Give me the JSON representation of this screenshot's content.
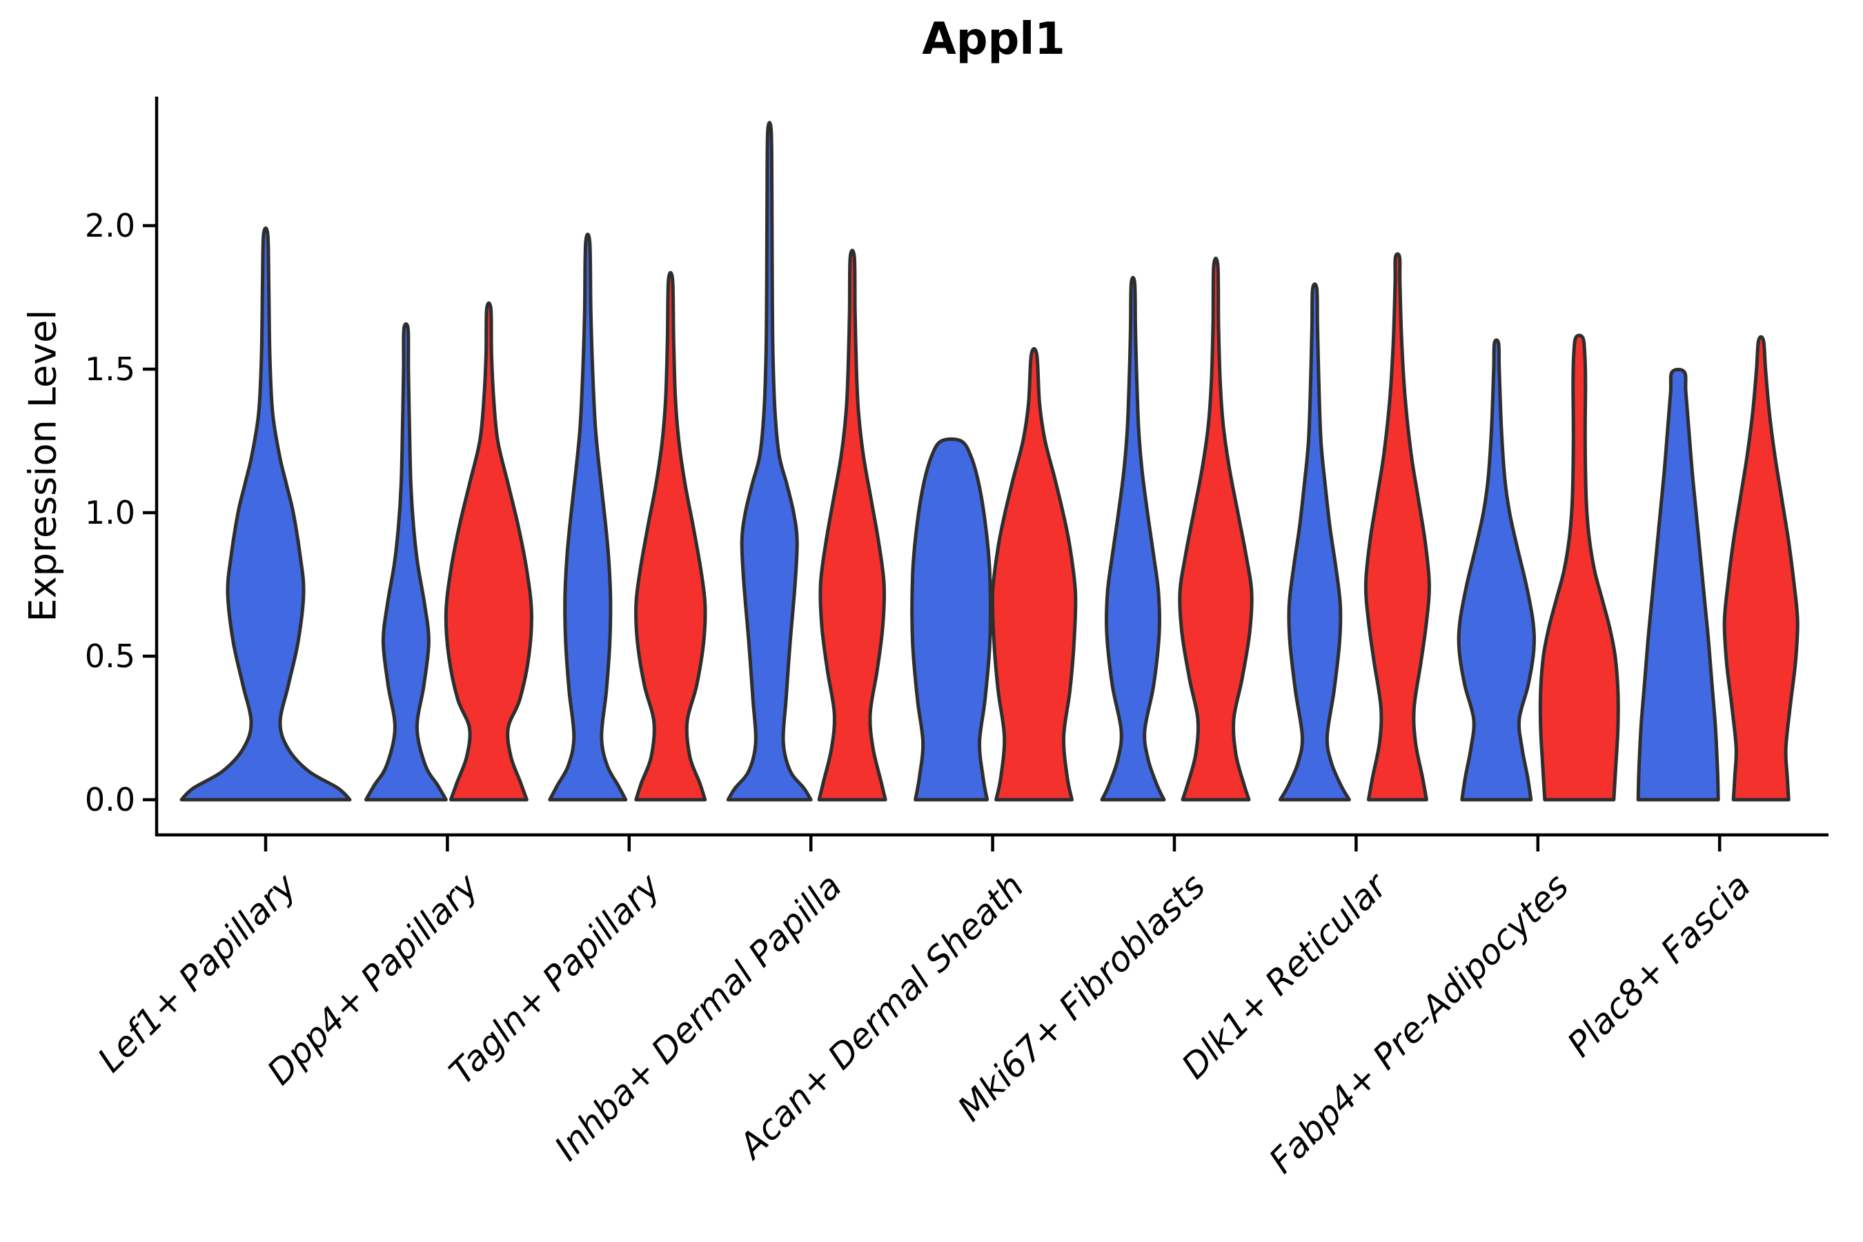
{
  "figure": {
    "title": "Appl1",
    "background": "#ffffff",
    "y_axis": {
      "label": "Expression Level",
      "tick_labels": [
        "0.0",
        "0.5",
        "1.0",
        "1.5",
        "2.0"
      ]
    },
    "colors": {
      "blue": "#4169E1",
      "red": "#F5312E",
      "violin_outline": "#2E2E2E",
      "axis": "#000000",
      "text": "#000000"
    }
  },
  "chart_data": {
    "type": "violin",
    "title": "Appl1",
    "xlabel": "",
    "ylabel": "Expression Level",
    "ylim": [
      -0.12,
      2.45
    ],
    "y_ticks": [
      0.0,
      0.5,
      1.0,
      1.5,
      2.0
    ],
    "grid": false,
    "legend": "none",
    "categories": [
      "Lef1+ Papillary",
      "Dpp4+ Papillary",
      "Tagln+ Papillary",
      "Inhba+ Dermal Papilla",
      "Acan+ Dermal Sheath",
      "Mki67+ Fibroblasts",
      "Dlk1+ Reticular",
      "Fabp4+ Pre-Adipocytes",
      "Plac8+ Fascia"
    ],
    "series": [
      {
        "name": "blue",
        "color": "#4169E1"
      },
      {
        "name": "red",
        "color": "#F5312E"
      }
    ],
    "profile_units": "each profile point is [expression_value, half_width_px]",
    "violins": [
      {
        "category_index": 0,
        "category": "Lef1+ Papillary",
        "group": "blue",
        "single": true,
        "max_expression": 1.97,
        "density_profile": [
          [
            0,
            122
          ],
          [
            0.04,
            105
          ],
          [
            0.1,
            62
          ],
          [
            0.18,
            32
          ],
          [
            0.27,
            21
          ],
          [
            0.4,
            33
          ],
          [
            0.55,
            47
          ],
          [
            0.72,
            55
          ],
          [
            0.85,
            50
          ],
          [
            1.0,
            40
          ],
          [
            1.1,
            30
          ],
          [
            1.2,
            20
          ],
          [
            1.35,
            10
          ],
          [
            1.55,
            6
          ],
          [
            1.8,
            4.5
          ],
          [
            1.97,
            3
          ]
        ]
      },
      {
        "category_index": 1,
        "category": "Dpp4+ Papillary",
        "group": "blue",
        "single": false,
        "max_expression": 1.64,
        "density_profile": [
          [
            0,
            58
          ],
          [
            0.05,
            46
          ],
          [
            0.12,
            28
          ],
          [
            0.25,
            16
          ],
          [
            0.4,
            26
          ],
          [
            0.55,
            33
          ],
          [
            0.68,
            27
          ],
          [
            0.82,
            17
          ],
          [
            0.95,
            11
          ],
          [
            1.1,
            7
          ],
          [
            1.3,
            5
          ],
          [
            1.5,
            3.5
          ],
          [
            1.64,
            3
          ]
        ]
      },
      {
        "category_index": 1,
        "category": "Dpp4+ Papillary",
        "group": "red",
        "single": false,
        "max_expression": 1.71,
        "density_profile": [
          [
            0,
            55
          ],
          [
            0.06,
            46
          ],
          [
            0.15,
            32
          ],
          [
            0.25,
            28
          ],
          [
            0.35,
            45
          ],
          [
            0.5,
            58
          ],
          [
            0.65,
            62
          ],
          [
            0.8,
            55
          ],
          [
            0.95,
            43
          ],
          [
            1.1,
            28
          ],
          [
            1.25,
            13
          ],
          [
            1.4,
            7
          ],
          [
            1.55,
            4
          ],
          [
            1.71,
            3
          ]
        ]
      },
      {
        "category_index": 2,
        "category": "Tagln+ Papillary",
        "group": "blue",
        "single": false,
        "max_expression": 1.94,
        "density_profile": [
          [
            0,
            55
          ],
          [
            0.05,
            44
          ],
          [
            0.12,
            28
          ],
          [
            0.22,
            20
          ],
          [
            0.38,
            27
          ],
          [
            0.55,
            32
          ],
          [
            0.7,
            33
          ],
          [
            0.85,
            30
          ],
          [
            1.0,
            24
          ],
          [
            1.15,
            17
          ],
          [
            1.3,
            11
          ],
          [
            1.5,
            7
          ],
          [
            1.7,
            4.5
          ],
          [
            1.94,
            3
          ]
        ]
      },
      {
        "category_index": 2,
        "category": "Tagln+ Papillary",
        "group": "red",
        "single": false,
        "max_expression": 1.81,
        "density_profile": [
          [
            0,
            50
          ],
          [
            0.06,
            42
          ],
          [
            0.15,
            28
          ],
          [
            0.27,
            24
          ],
          [
            0.4,
            38
          ],
          [
            0.55,
            48
          ],
          [
            0.68,
            50
          ],
          [
            0.8,
            44
          ],
          [
            0.95,
            33
          ],
          [
            1.1,
            21
          ],
          [
            1.25,
            12
          ],
          [
            1.4,
            7
          ],
          [
            1.6,
            4.5
          ],
          [
            1.81,
            3
          ]
        ]
      },
      {
        "category_index": 3,
        "category": "Inhba+ Dermal Papilla",
        "group": "blue",
        "single": false,
        "max_expression": 2.33,
        "density_profile": [
          [
            0,
            60
          ],
          [
            0.04,
            50
          ],
          [
            0.1,
            30
          ],
          [
            0.2,
            20
          ],
          [
            0.35,
            24
          ],
          [
            0.55,
            30
          ],
          [
            0.75,
            37
          ],
          [
            0.9,
            40
          ],
          [
            1.0,
            35
          ],
          [
            1.1,
            25
          ],
          [
            1.2,
            14
          ],
          [
            1.35,
            8
          ],
          [
            1.55,
            5
          ],
          [
            1.8,
            4
          ],
          [
            2.1,
            3.5
          ],
          [
            2.33,
            2.5
          ]
        ]
      },
      {
        "category_index": 3,
        "category": "Inhba+ Dermal Papilla",
        "group": "red",
        "single": false,
        "max_expression": 1.89,
        "density_profile": [
          [
            0,
            48
          ],
          [
            0.06,
            42
          ],
          [
            0.18,
            30
          ],
          [
            0.3,
            26
          ],
          [
            0.45,
            36
          ],
          [
            0.6,
            44
          ],
          [
            0.75,
            46
          ],
          [
            0.9,
            38
          ],
          [
            1.05,
            27
          ],
          [
            1.2,
            16
          ],
          [
            1.35,
            9
          ],
          [
            1.5,
            6
          ],
          [
            1.7,
            4
          ],
          [
            1.89,
            3
          ]
        ]
      },
      {
        "category_index": 4,
        "category": "Acan+ Dermal Sheath",
        "group": "blue",
        "single": false,
        "max_expression": 1.25,
        "density_profile": [
          [
            0,
            52
          ],
          [
            0.08,
            46
          ],
          [
            0.2,
            41
          ],
          [
            0.35,
            49
          ],
          [
            0.55,
            56
          ],
          [
            0.78,
            56
          ],
          [
            0.95,
            50
          ],
          [
            1.1,
            40
          ],
          [
            1.2,
            28
          ],
          [
            1.25,
            14
          ]
        ]
      },
      {
        "category_index": 4,
        "category": "Acan+ Dermal Sheath",
        "group": "red",
        "single": false,
        "max_expression": 1.55,
        "density_profile": [
          [
            0,
            55
          ],
          [
            0.08,
            48
          ],
          [
            0.22,
            43
          ],
          [
            0.38,
            52
          ],
          [
            0.55,
            58
          ],
          [
            0.72,
            60
          ],
          [
            0.88,
            52
          ],
          [
            1.0,
            42
          ],
          [
            1.12,
            30
          ],
          [
            1.25,
            16
          ],
          [
            1.38,
            8
          ],
          [
            1.55,
            4
          ]
        ]
      },
      {
        "category_index": 5,
        "category": "Mki67+ Fibroblasts",
        "group": "blue",
        "single": false,
        "max_expression": 1.8,
        "density_profile": [
          [
            0,
            45
          ],
          [
            0.05,
            35
          ],
          [
            0.14,
            22
          ],
          [
            0.24,
            17
          ],
          [
            0.4,
            30
          ],
          [
            0.58,
            38
          ],
          [
            0.72,
            37
          ],
          [
            0.85,
            30
          ],
          [
            1.0,
            21
          ],
          [
            1.15,
            13
          ],
          [
            1.3,
            8
          ],
          [
            1.5,
            5
          ],
          [
            1.65,
            3.5
          ],
          [
            1.8,
            2.5
          ]
        ]
      },
      {
        "category_index": 5,
        "category": "Mki67+ Fibroblasts",
        "group": "red",
        "single": false,
        "max_expression": 1.86,
        "density_profile": [
          [
            0,
            48
          ],
          [
            0.06,
            40
          ],
          [
            0.16,
            29
          ],
          [
            0.28,
            26
          ],
          [
            0.42,
            38
          ],
          [
            0.58,
            49
          ],
          [
            0.72,
            52
          ],
          [
            0.85,
            44
          ],
          [
            1.0,
            32
          ],
          [
            1.15,
            20
          ],
          [
            1.3,
            11
          ],
          [
            1.45,
            6.5
          ],
          [
            1.65,
            4
          ],
          [
            1.86,
            3
          ]
        ]
      },
      {
        "category_index": 6,
        "category": "Dlk1+ Reticular",
        "group": "blue",
        "single": false,
        "max_expression": 1.78,
        "density_profile": [
          [
            0,
            50
          ],
          [
            0.05,
            38
          ],
          [
            0.13,
            24
          ],
          [
            0.22,
            18
          ],
          [
            0.38,
            28
          ],
          [
            0.55,
            36
          ],
          [
            0.68,
            37
          ],
          [
            0.82,
            30
          ],
          [
            0.95,
            22
          ],
          [
            1.1,
            15
          ],
          [
            1.25,
            9
          ],
          [
            1.45,
            6
          ],
          [
            1.65,
            4
          ],
          [
            1.78,
            3
          ]
        ]
      },
      {
        "category_index": 6,
        "category": "Dlk1+ Reticular",
        "group": "red",
        "single": false,
        "max_expression": 1.89,
        "density_profile": [
          [
            0,
            42
          ],
          [
            0.08,
            36
          ],
          [
            0.2,
            26
          ],
          [
            0.32,
            24
          ],
          [
            0.48,
            34
          ],
          [
            0.62,
            42
          ],
          [
            0.75,
            46
          ],
          [
            0.9,
            40
          ],
          [
            1.05,
            30
          ],
          [
            1.2,
            20
          ],
          [
            1.4,
            11
          ],
          [
            1.6,
            6
          ],
          [
            1.8,
            3.5
          ],
          [
            1.89,
            3
          ]
        ]
      },
      {
        "category_index": 7,
        "category": "Fabp4+ Pre-Adipocytes",
        "group": "blue",
        "single": false,
        "max_expression": 1.59,
        "density_profile": [
          [
            0,
            50
          ],
          [
            0.08,
            45
          ],
          [
            0.18,
            37
          ],
          [
            0.28,
            33
          ],
          [
            0.4,
            46
          ],
          [
            0.52,
            54
          ],
          [
            0.62,
            53
          ],
          [
            0.75,
            43
          ],
          [
            0.88,
            30
          ],
          [
            1.0,
            19
          ],
          [
            1.12,
            12
          ],
          [
            1.3,
            7
          ],
          [
            1.5,
            4
          ],
          [
            1.59,
            3
          ]
        ]
      },
      {
        "category_index": 7,
        "category": "Fabp4+ Pre-Adipocytes",
        "group": "red",
        "single": false,
        "max_expression": 1.61,
        "density_profile": [
          [
            0,
            50
          ],
          [
            0.12,
            53
          ],
          [
            0.25,
            56
          ],
          [
            0.38,
            56
          ],
          [
            0.5,
            52
          ],
          [
            0.6,
            44
          ],
          [
            0.7,
            33
          ],
          [
            0.8,
            22
          ],
          [
            0.92,
            14
          ],
          [
            1.05,
            10
          ],
          [
            1.25,
            8.5
          ],
          [
            1.45,
            9
          ],
          [
            1.55,
            8
          ],
          [
            1.61,
            5
          ]
        ]
      },
      {
        "category_index": 8,
        "category": "Plac8+ Fascia",
        "group": "blue",
        "single": false,
        "max_expression": 1.49,
        "density_profile": [
          [
            0,
            58
          ],
          [
            0.1,
            57
          ],
          [
            0.25,
            54
          ],
          [
            0.4,
            49
          ],
          [
            0.55,
            44
          ],
          [
            0.7,
            38
          ],
          [
            0.85,
            32
          ],
          [
            1.0,
            26
          ],
          [
            1.15,
            20
          ],
          [
            1.3,
            15
          ],
          [
            1.42,
            11
          ],
          [
            1.49,
            9
          ]
        ]
      },
      {
        "category_index": 8,
        "category": "Plac8+ Fascia",
        "group": "red",
        "single": false,
        "max_expression": 1.6,
        "density_profile": [
          [
            0,
            40
          ],
          [
            0.08,
            38
          ],
          [
            0.18,
            36
          ],
          [
            0.32,
            42
          ],
          [
            0.48,
            50
          ],
          [
            0.62,
            53
          ],
          [
            0.75,
            48
          ],
          [
            0.9,
            40
          ],
          [
            1.05,
            30
          ],
          [
            1.2,
            20
          ],
          [
            1.35,
            12
          ],
          [
            1.5,
            6.5
          ],
          [
            1.6,
            3.5
          ]
        ]
      }
    ]
  }
}
